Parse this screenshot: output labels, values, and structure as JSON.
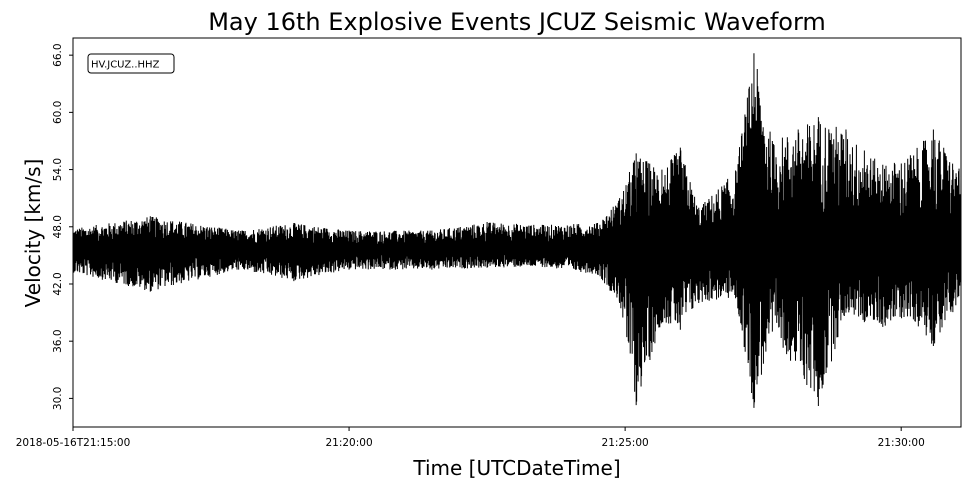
{
  "chart_data": {
    "type": "line",
    "title": "May 16th Explosive Events JCUZ Seismic Waveform",
    "xlabel": "Time [UTCDateTime]",
    "ylabel": "Velocity [km/s]",
    "x_start": "2018-05-16T21:15:00",
    "x_end": "2018-05-16T21:31:05",
    "xticks": [
      {
        "value": "2018-05-16T21:15:00",
        "label": "2018-05-16T21:15:00"
      },
      {
        "value": "2018-05-16T21:20:00",
        "label": "21:20:00"
      },
      {
        "value": "2018-05-16T21:25:00",
        "label": "21:25:00"
      },
      {
        "value": "2018-05-16T21:30:00",
        "label": "21:30:00"
      }
    ],
    "ylim": [
      27.0,
      67.8
    ],
    "yticks": [
      {
        "value": 30.0,
        "label": "30.0"
      },
      {
        "value": 36.0,
        "label": "36.0"
      },
      {
        "value": 42.0,
        "label": "42.0"
      },
      {
        "value": 48.0,
        "label": "48.0"
      },
      {
        "value": 54.0,
        "label": "54.0"
      },
      {
        "value": 60.0,
        "label": "60.0"
      },
      {
        "value": 66.0,
        "label": "66.0"
      }
    ],
    "grid": false,
    "legend_location": "top-left",
    "series": [
      {
        "name": "HV.JCUZ..HHZ",
        "color": "#000000",
        "baseline": 45.6,
        "envelope": [
          {
            "t": "2018-05-16T21:15:00",
            "min": 43.2,
            "max": 47.8
          },
          {
            "t": "2018-05-16T21:16:24",
            "min": 41.2,
            "max": 49.1
          },
          {
            "t": "2018-05-16T21:18:00",
            "min": 43.5,
            "max": 47.6
          },
          {
            "t": "2018-05-16T21:19:00",
            "min": 42.3,
            "max": 48.4
          },
          {
            "t": "2018-05-16T21:20:00",
            "min": 43.5,
            "max": 47.6
          },
          {
            "t": "2018-05-16T21:21:30",
            "min": 43.5,
            "max": 47.6
          },
          {
            "t": "2018-05-16T21:22:30",
            "min": 43.7,
            "max": 48.5
          },
          {
            "t": "2018-05-16T21:23:30",
            "min": 43.8,
            "max": 48.2
          },
          {
            "t": "2018-05-16T21:24:30",
            "min": 43.0,
            "max": 48.4
          },
          {
            "t": "2018-05-16T21:24:54",
            "min": 40.0,
            "max": 51.0
          },
          {
            "t": "2018-05-16T21:25:12",
            "min": 29.3,
            "max": 55.7
          },
          {
            "t": "2018-05-16T21:25:40",
            "min": 38.0,
            "max": 54.0
          },
          {
            "t": "2018-05-16T21:26:00",
            "min": 37.2,
            "max": 56.3
          },
          {
            "t": "2018-05-16T21:26:20",
            "min": 40.0,
            "max": 50.0
          },
          {
            "t": "2018-05-16T21:27:00",
            "min": 40.5,
            "max": 53.9
          },
          {
            "t": "2018-05-16T21:27:20",
            "min": 29.0,
            "max": 66.2
          },
          {
            "t": "2018-05-16T21:27:40",
            "min": 37.0,
            "max": 57.0
          },
          {
            "t": "2018-05-16T21:28:30",
            "min": 29.2,
            "max": 59.5
          },
          {
            "t": "2018-05-16T21:29:00",
            "min": 39.0,
            "max": 58.2
          },
          {
            "t": "2018-05-16T21:29:20",
            "min": 38.0,
            "max": 56.0
          },
          {
            "t": "2018-05-16T21:29:40",
            "min": 37.5,
            "max": 54.5
          },
          {
            "t": "2018-05-16T21:30:10",
            "min": 38.6,
            "max": 55.5
          },
          {
            "t": "2018-05-16T21:30:35",
            "min": 35.5,
            "max": 58.2
          },
          {
            "t": "2018-05-16T21:31:05",
            "min": 40.5,
            "max": 53.8
          }
        ]
      }
    ]
  }
}
